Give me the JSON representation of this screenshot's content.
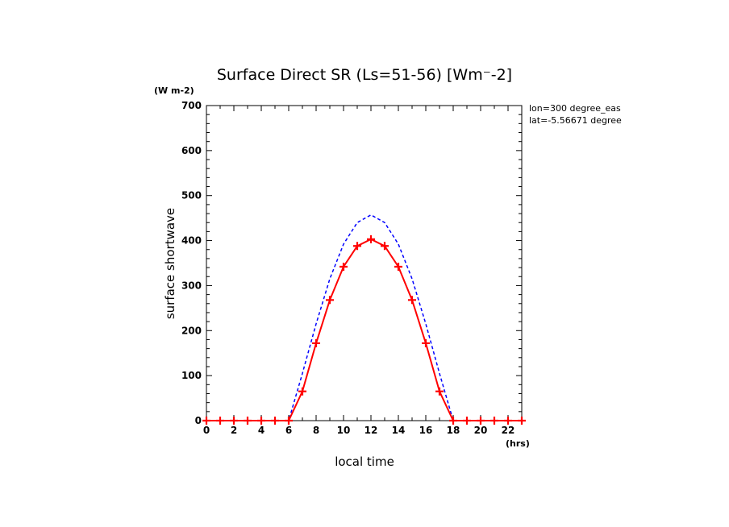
{
  "chart_data": {
    "type": "line",
    "title": "Surface Direct SR (Ls=51-56) [Wm⁻-2]",
    "ylabel": "surface shortwave",
    "yunit": "(W m-2)",
    "xlabel": "local time",
    "xunit": "(hrs)",
    "annotations": [
      "lon=300 degree_eas",
      "lat=-5.56671 degree"
    ],
    "xlim": [
      0,
      23
    ],
    "ylim": [
      0,
      700
    ],
    "x_ticks": [
      0,
      2,
      4,
      6,
      8,
      10,
      12,
      14,
      16,
      18,
      20,
      22
    ],
    "y_ticks": [
      0,
      100,
      200,
      300,
      400,
      500,
      600,
      700
    ],
    "x": [
      0,
      1,
      2,
      3,
      4,
      5,
      6,
      7,
      8,
      9,
      10,
      11,
      12,
      13,
      14,
      15,
      16,
      17,
      18,
      19,
      20,
      21,
      22,
      23
    ],
    "series": [
      {
        "color": "#ff0000",
        "style": "solid",
        "marker": "plus",
        "values": [
          0,
          0,
          0,
          0,
          0,
          0,
          0,
          65,
          172,
          268,
          342,
          388,
          403,
          388,
          342,
          268,
          172,
          65,
          0,
          0,
          0,
          0,
          0,
          0
        ]
      },
      {
        "color": "#0000ff",
        "style": "dashed",
        "marker": "none",
        "values": [
          0,
          0,
          0,
          0,
          0,
          0,
          0,
          105,
          215,
          315,
          392,
          440,
          457,
          440,
          392,
          315,
          215,
          105,
          0,
          0,
          0,
          0,
          0,
          0
        ]
      }
    ]
  }
}
